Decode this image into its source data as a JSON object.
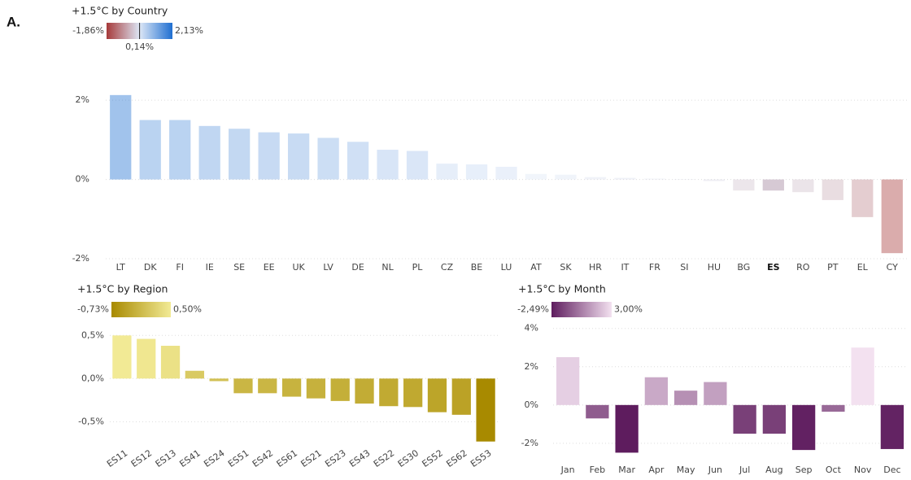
{
  "label": "A.",
  "chart_data": [
    {
      "type": "bar",
      "title": "+1.5°C by Country",
      "legend": {
        "min": {
          "value": -1.86,
          "label": "-1,86%"
        },
        "mid": {
          "value": 0.14,
          "label": "0,14%"
        },
        "max": {
          "value": 2.13,
          "label": "2,13%"
        }
      },
      "gradient": [
        "#a63a3a",
        "#dde7f6",
        "#1f6fd1"
      ],
      "opacity": 0.42,
      "highlight": "ES",
      "categories": [
        "LT",
        "DK",
        "FI",
        "IE",
        "SE",
        "EE",
        "UK",
        "LV",
        "DE",
        "NL",
        "PL",
        "CZ",
        "BE",
        "LU",
        "AT",
        "SK",
        "HR",
        "IT",
        "FR",
        "SI",
        "HU",
        "BG",
        "ES",
        "RO",
        "PT",
        "EL",
        "CY"
      ],
      "values": [
        2.13,
        1.5,
        1.5,
        1.35,
        1.28,
        1.19,
        1.16,
        1.05,
        0.95,
        0.75,
        0.72,
        0.4,
        0.38,
        0.32,
        0.14,
        0.12,
        0.06,
        0.04,
        0.02,
        0.01,
        -0.04,
        -0.28,
        -0.28,
        -0.32,
        -0.52,
        -0.95,
        -1.86
      ],
      "ylim": [
        -2,
        2.25
      ],
      "yticks": [
        {
          "value": -2,
          "label": "-2%"
        },
        {
          "value": 0,
          "label": "0%"
        },
        {
          "value": 2,
          "label": "2%"
        }
      ],
      "grid": true
    },
    {
      "type": "bar",
      "title": "+1.5°C by Region",
      "legend": {
        "min": {
          "value": -0.73,
          "label": "-0,73%"
        },
        "max": {
          "value": 0.5,
          "label": "0,50%"
        }
      },
      "gradient": [
        "#a88a00",
        "#f2ea95"
      ],
      "opacity": 1,
      "categories": [
        "ES11",
        "ES12",
        "ES13",
        "ES41",
        "ES24",
        "ES51",
        "ES42",
        "ES61",
        "ES21",
        "ES23",
        "ES43",
        "ES22",
        "ES30",
        "ES52",
        "ES62",
        "ES53"
      ],
      "values": [
        0.5,
        0.46,
        0.38,
        0.09,
        -0.03,
        -0.17,
        -0.17,
        -0.21,
        -0.23,
        -0.26,
        -0.29,
        -0.32,
        -0.33,
        -0.39,
        -0.42,
        -0.73
      ],
      "ylim": [
        -0.78,
        0.55
      ],
      "yticks": [
        {
          "value": -0.5,
          "label": "-0,5%"
        },
        {
          "value": 0,
          "label": "0,0%"
        },
        {
          "value": 0.5,
          "label": "0,5%"
        }
      ],
      "grid": true
    },
    {
      "type": "bar",
      "title": "+1.5°C by Month",
      "legend": {
        "min": {
          "value": -2.49,
          "label": "-2,49%"
        },
        "max": {
          "value": 3.0,
          "label": "3,00%"
        }
      },
      "gradient": [
        "#5e1c5e",
        "#f3e1f0"
      ],
      "opacity": 1,
      "categories": [
        "Jan",
        "Feb",
        "Mar",
        "Apr",
        "May",
        "Jun",
        "Jul",
        "Aug",
        "Sep",
        "Oct",
        "Nov",
        "Dec"
      ],
      "values": [
        2.5,
        -0.7,
        -2.49,
        1.45,
        0.75,
        1.2,
        -1.5,
        -1.5,
        -2.35,
        -0.35,
        3.0,
        -2.3
      ],
      "ylim": [
        -2.6,
        4.2
      ],
      "yticks": [
        {
          "value": -2,
          "label": "-2%"
        },
        {
          "value": 0,
          "label": "0%"
        },
        {
          "value": 2,
          "label": "2%"
        },
        {
          "value": 4,
          "label": "4%"
        }
      ],
      "grid": true
    }
  ]
}
